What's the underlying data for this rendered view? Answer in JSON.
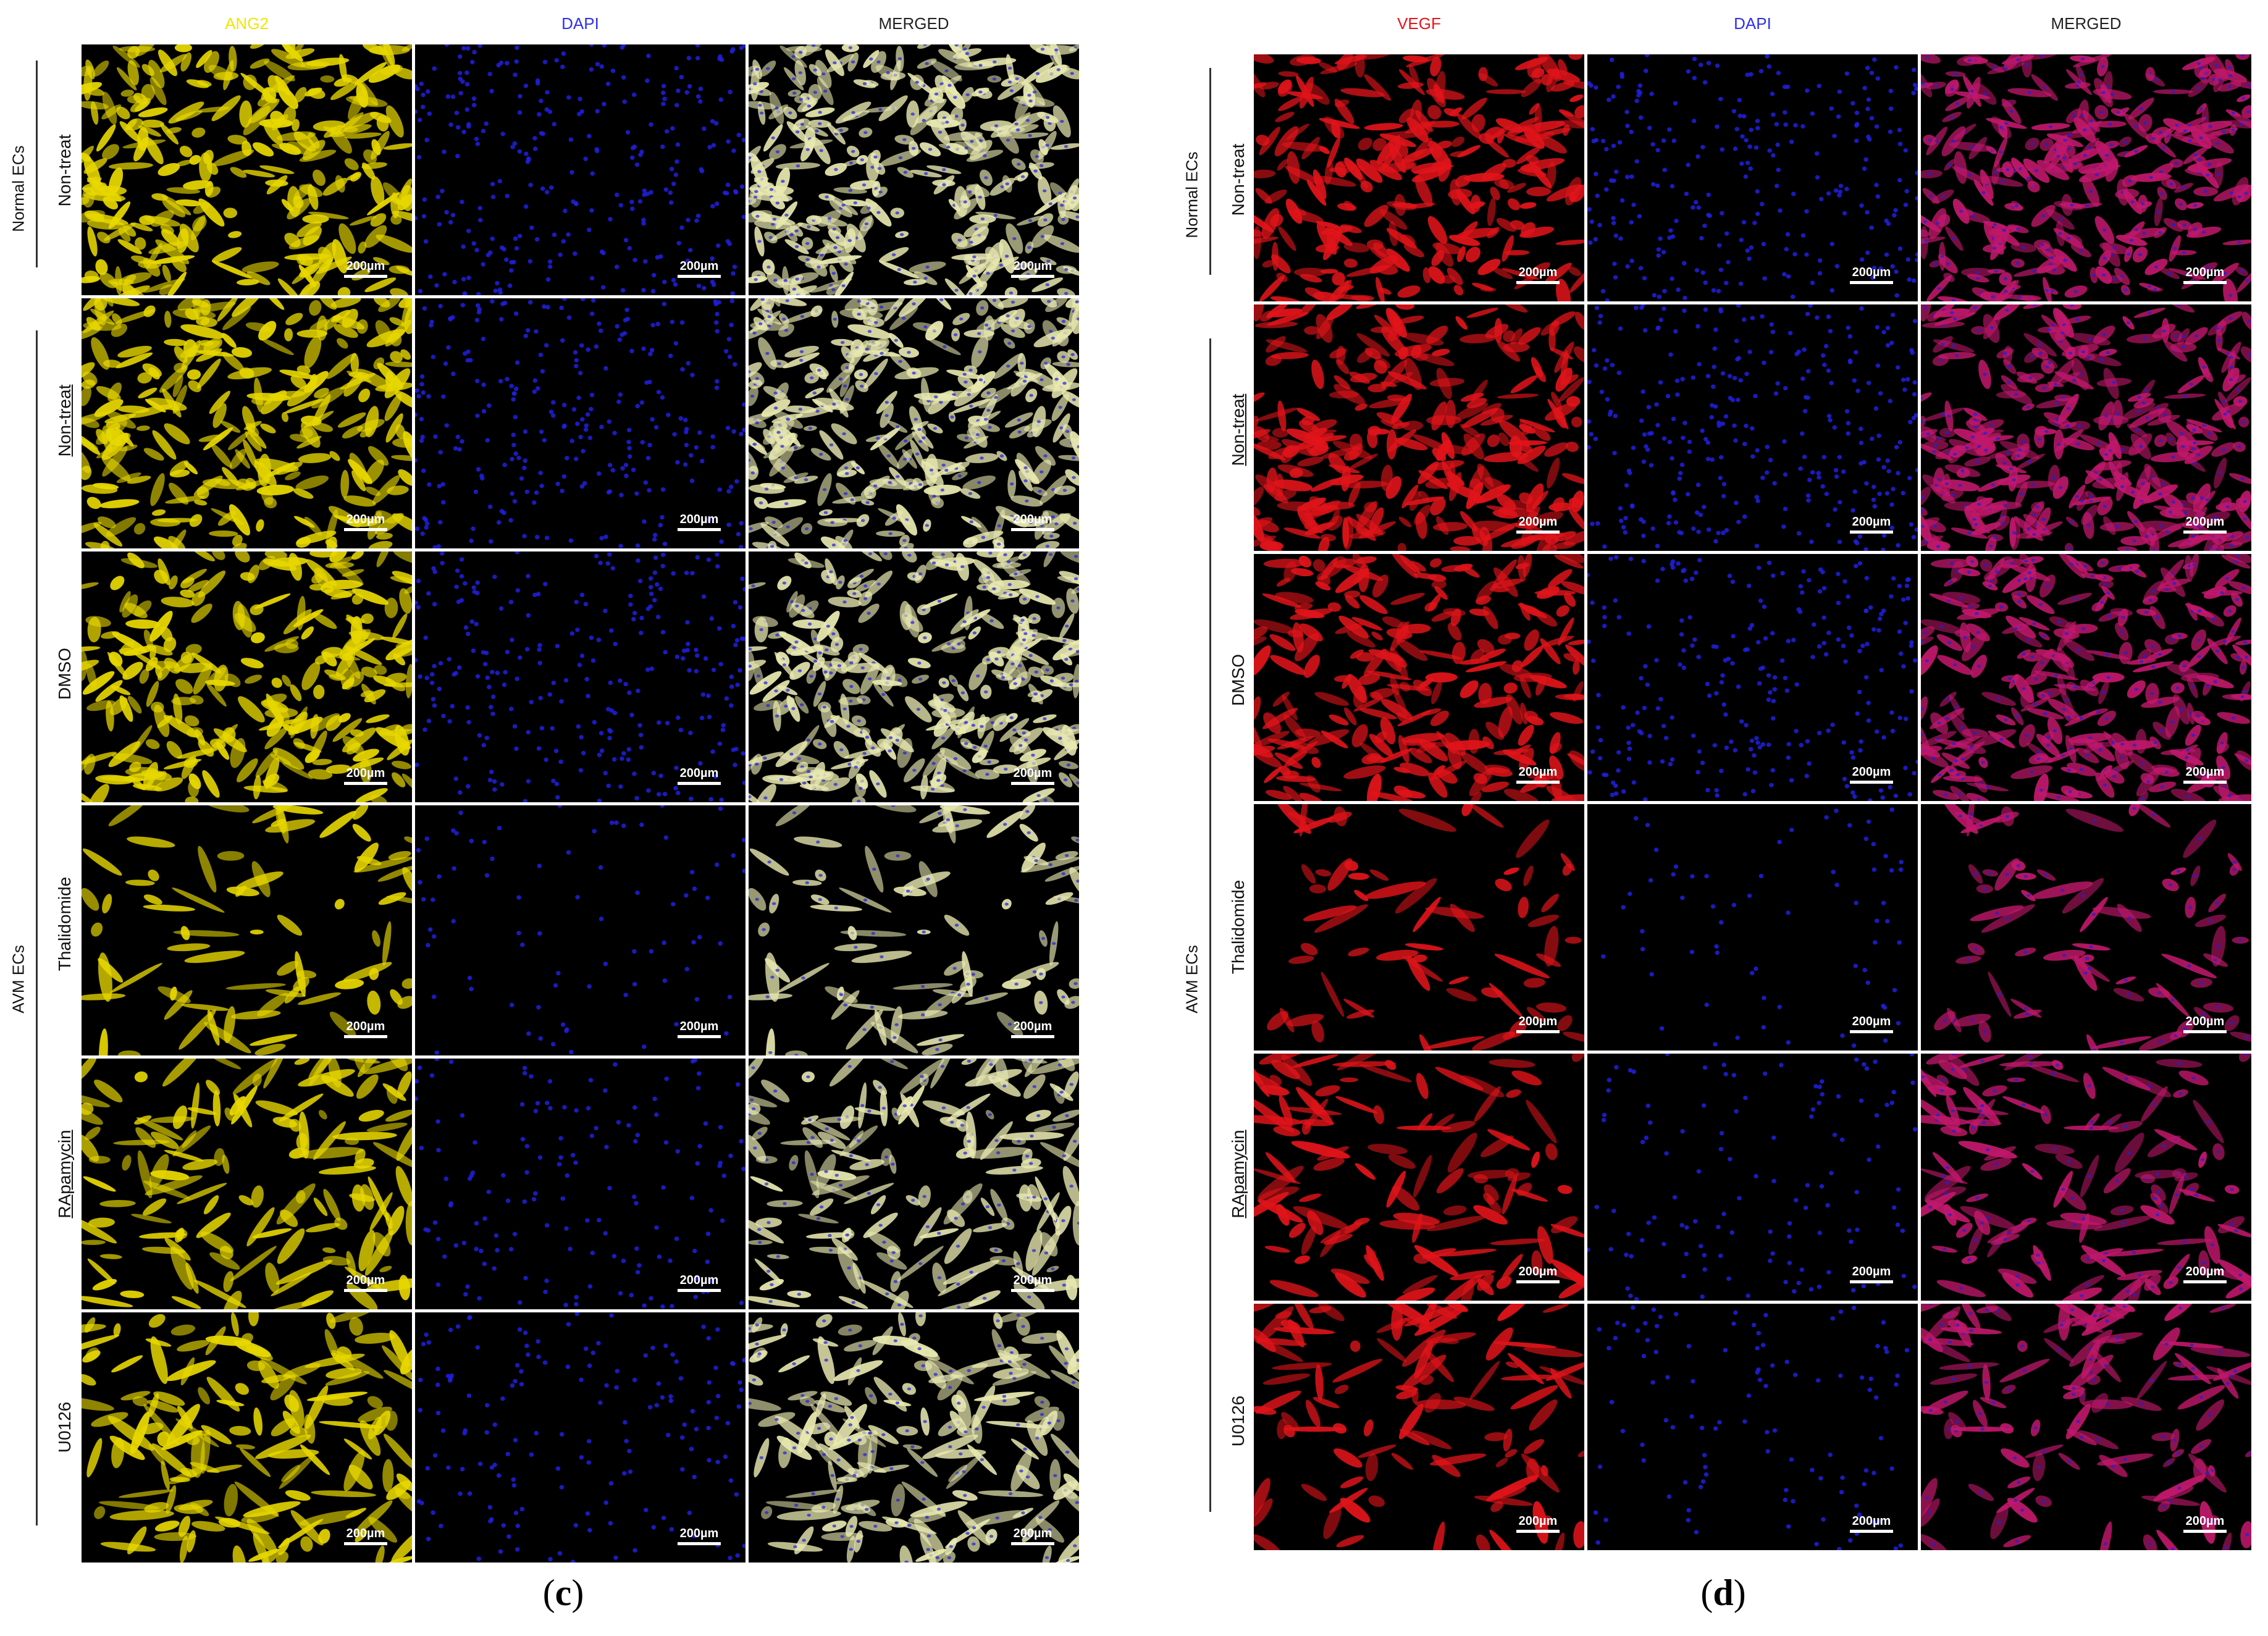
{
  "panel_c": {
    "caption_open": "(",
    "caption_letter": "c",
    "caption_close": ")",
    "headers": [
      "ANG2",
      "DAPI",
      "MERGED"
    ],
    "header_colors": [
      "#f2e600",
      "#2f2ff0",
      "#222222"
    ],
    "group_top": "Normal ECs",
    "group_bottom": "AVM ECs",
    "rows": [
      "Non-treat",
      "Non-treat",
      "DMSO",
      "Thalidomide",
      "RApamycin",
      "U0126"
    ],
    "scale_label": "200µm"
  },
  "panel_d": {
    "caption_open": "(",
    "caption_letter": "d",
    "caption_close": ")",
    "headers": [
      "VEGF",
      "DAPI",
      "MERGED"
    ],
    "header_colors": [
      "#e8141a",
      "#2f2ff0",
      "#222222"
    ],
    "group_top": "Normal ECs",
    "group_bottom": "AVM ECs",
    "rows": [
      "Non-treat",
      "Non-treat",
      "DMSO",
      "Thalidomide",
      "RApamycin",
      "U0126"
    ],
    "scale_label": "200µm"
  },
  "image_colors": {
    "ang2": "#e8d800",
    "vegf": "#e0141a",
    "dapi": "#2020e0",
    "merged_c": "#e8e8b0",
    "merged_d": "#c0186a"
  },
  "cell_density": {
    "panel_c": [
      0.95,
      0.9,
      0.85,
      0.15,
      0.4,
      0.45
    ],
    "panel_d": [
      0.85,
      0.95,
      0.8,
      0.1,
      0.3,
      0.25
    ]
  }
}
